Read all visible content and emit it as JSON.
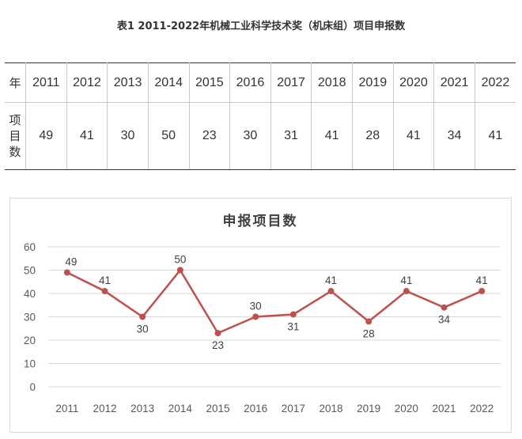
{
  "table": {
    "title": "表1 2011-2022年机械工业科学技术奖（机床组）项目申报数",
    "year_header": "年",
    "count_header": "项目数",
    "years": [
      "2011",
      "2012",
      "2013",
      "2014",
      "2015",
      "2016",
      "2017",
      "2018",
      "2019",
      "2020",
      "2021",
      "2022"
    ],
    "counts": [
      "49",
      "41",
      "30",
      "50",
      "23",
      "30",
      "31",
      "41",
      "28",
      "41",
      "34",
      "41"
    ]
  },
  "chart_data": {
    "type": "line",
    "title": "申报项目数",
    "categories": [
      "2011",
      "2012",
      "2013",
      "2014",
      "2015",
      "2016",
      "2017",
      "2018",
      "2019",
      "2020",
      "2021",
      "2022"
    ],
    "series": [
      {
        "values": [
          49,
          41,
          30,
          50,
          23,
          30,
          31,
          41,
          28,
          41,
          34,
          41
        ]
      }
    ],
    "ylim": [
      0,
      60
    ],
    "yticks": [
      0,
      10,
      20,
      30,
      40,
      50,
      60
    ],
    "grid": true,
    "line_color": "#c0504d",
    "data_label_positions": [
      "above",
      "above",
      "below",
      "above",
      "below",
      "above",
      "below",
      "above",
      "below",
      "above",
      "below",
      "above"
    ]
  }
}
